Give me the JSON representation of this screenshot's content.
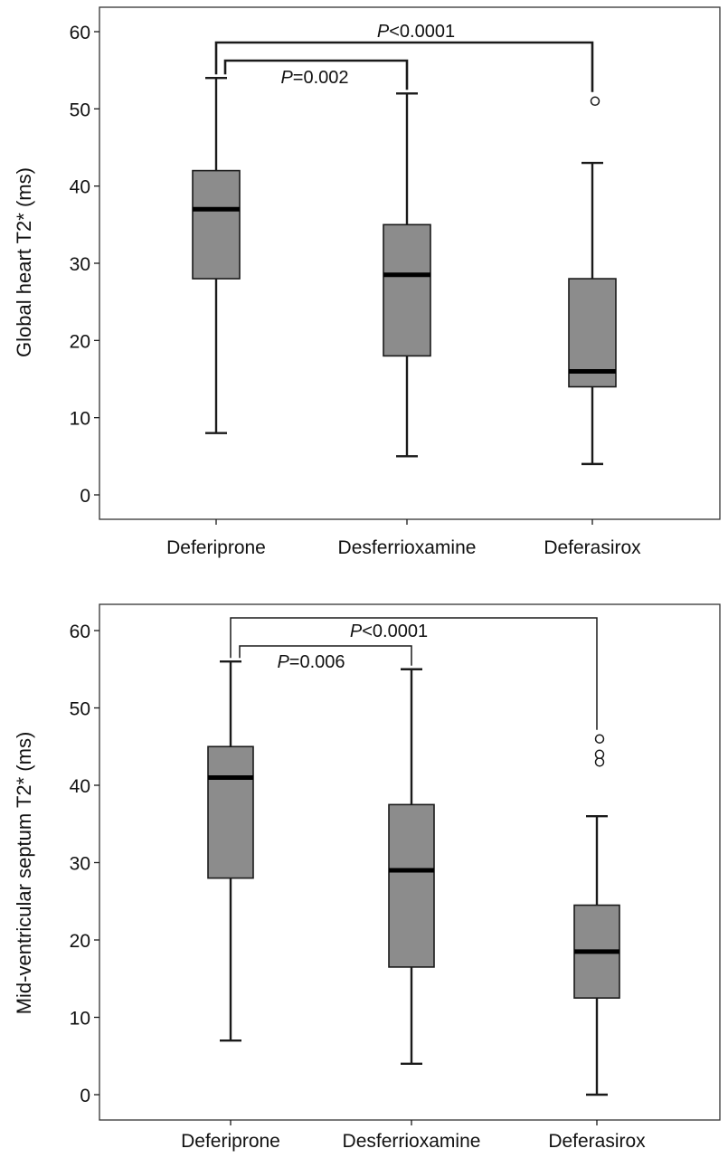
{
  "chart_data": [
    {
      "type": "box",
      "ylabel": "Global heart T2* (ms)",
      "ylim": [
        0,
        60
      ],
      "yticks": [
        0,
        10,
        20,
        30,
        40,
        50,
        60
      ],
      "categories": [
        "Deferiprone",
        "Desferrioxamine",
        "Deferasirox"
      ],
      "boxes": [
        {
          "min": 8,
          "q1": 28,
          "median": 37,
          "q3": 42,
          "max": 54,
          "outliers": []
        },
        {
          "min": 5,
          "q1": 18,
          "median": 28.5,
          "q3": 35,
          "max": 52,
          "outliers": []
        },
        {
          "min": 4,
          "q1": 14,
          "median": 16,
          "q3": 28,
          "max": 43,
          "outliers": [
            51
          ]
        }
      ],
      "comparisons": [
        {
          "from": 0,
          "to": 2,
          "p_prefix": "P",
          "p_rest": "<0.0001",
          "level": "outer"
        },
        {
          "from": 0,
          "to": 1,
          "p_prefix": "P",
          "p_rest": "=0.002",
          "level": "inner"
        }
      ]
    },
    {
      "type": "box",
      "ylabel": "Mid-ventricular septum  T2* (ms)",
      "ylim": [
        0,
        60
      ],
      "yticks": [
        0,
        10,
        20,
        30,
        40,
        50,
        60
      ],
      "categories": [
        "Deferiprone",
        "Desferrioxamine",
        "Deferasirox"
      ],
      "boxes": [
        {
          "min": 7,
          "q1": 28,
          "median": 41,
          "q3": 45,
          "max": 56,
          "outliers": []
        },
        {
          "min": 4,
          "q1": 16.5,
          "median": 29,
          "q3": 37.5,
          "max": 55,
          "outliers": []
        },
        {
          "min": 0,
          "q1": 12.5,
          "median": 18.5,
          "q3": 24.5,
          "max": 36,
          "outliers": [
            43,
            44,
            46
          ]
        }
      ],
      "comparisons": [
        {
          "from": 0,
          "to": 2,
          "p_prefix": "P",
          "p_rest": "<0.0001",
          "level": "outer"
        },
        {
          "from": 0,
          "to": 1,
          "p_prefix": "P",
          "p_rest": "=0.006",
          "level": "inner"
        }
      ]
    }
  ],
  "colors": {
    "box_fill": "#8c8c8c",
    "stroke": "#1a1a1a",
    "frame": "#333333"
  }
}
